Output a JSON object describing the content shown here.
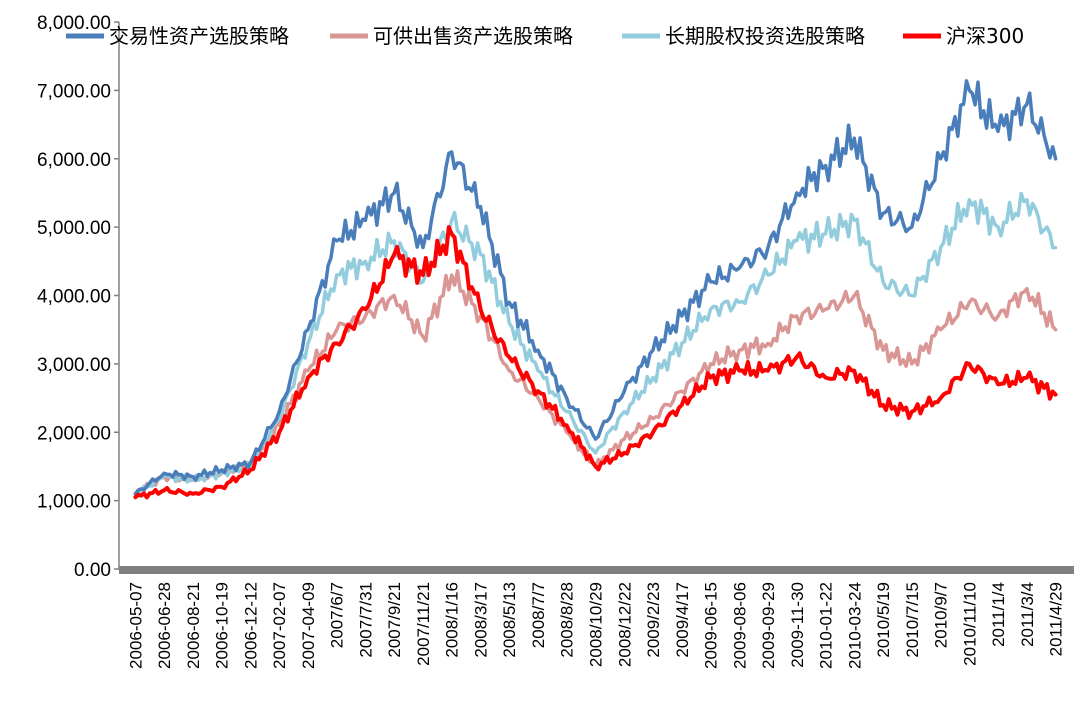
{
  "chart_data": {
    "type": "line",
    "title": "",
    "xlabel": "",
    "ylabel": "",
    "ylim": [
      0,
      8000
    ],
    "y_ticks": [
      "0.00",
      "1,000.00",
      "2,000.00",
      "3,000.00",
      "4,000.00",
      "5,000.00",
      "6,000.00",
      "7,000.00",
      "8,000.00"
    ],
    "legend_position": "top",
    "grid": false,
    "categories": [
      "2006-05-07",
      "2006-06-28",
      "2006-08-21",
      "2006-10-19",
      "2006-12-12",
      "2007-02-07",
      "2007-04-09",
      "2007/6/7",
      "2007/7/31",
      "2007/9/21",
      "2007/11/21",
      "2008/1/16",
      "2008/3/17",
      "2008/5/13",
      "2008/7/7",
      "2008/8/28",
      "2008/10/29",
      "2008/12/22",
      "2009/2/23",
      "2009/4/17",
      "2009-06-15",
      "2009-08-06",
      "2009-09-29",
      "2009-11-30",
      "2010-01-22",
      "2010-03-24",
      "2010/5/19",
      "2010/7/15",
      "2010/9/7",
      "2010/11/10",
      "2011/1/4",
      "2011/3/4",
      "2011/4/29"
    ],
    "series": [
      {
        "name": "交易性资产选股策略",
        "color": "#4a7ebb",
        "values": [
          1100,
          1400,
          1350,
          1450,
          1550,
          2300,
          3500,
          4800,
          5100,
          5500,
          4700,
          6100,
          5300,
          3900,
          3200,
          2500,
          1900,
          2600,
          3200,
          3700,
          4200,
          4400,
          4700,
          5500,
          5900,
          6300,
          5200,
          5000,
          6000,
          7000,
          6400,
          6800,
          6000
        ]
      },
      {
        "name": "可供出售资产选股策略",
        "color": "#d99694",
        "values": [
          1100,
          1350,
          1300,
          1400,
          1550,
          2100,
          2900,
          3500,
          3700,
          4000,
          3400,
          4300,
          3700,
          2900,
          2500,
          2000,
          1500,
          1900,
          2200,
          2600,
          3000,
          3200,
          3300,
          3700,
          3800,
          4000,
          3200,
          3000,
          3500,
          3900,
          3700,
          4100,
          3500
        ]
      },
      {
        "name": "长期股权投资选股策略",
        "color": "#93cddd",
        "values": [
          1100,
          1350,
          1300,
          1400,
          1500,
          2200,
          3300,
          4300,
          4500,
          4800,
          4200,
          5100,
          4600,
          3600,
          2900,
          2300,
          1700,
          2300,
          2800,
          3300,
          3800,
          3900,
          4300,
          4800,
          4900,
          5100,
          4200,
          4000,
          4700,
          5400,
          5000,
          5400,
          4700
        ]
      },
      {
        "name": "沪深300",
        "color": "#ff0000",
        "values": [
          1050,
          1150,
          1100,
          1200,
          1450,
          2000,
          2800,
          3300,
          3800,
          4600,
          4300,
          4900,
          3800,
          3100,
          2600,
          2100,
          1500,
          1700,
          2000,
          2400,
          2800,
          2900,
          2900,
          3100,
          2800,
          2900,
          2400,
          2300,
          2500,
          3000,
          2700,
          2800,
          2550
        ]
      }
    ]
  }
}
